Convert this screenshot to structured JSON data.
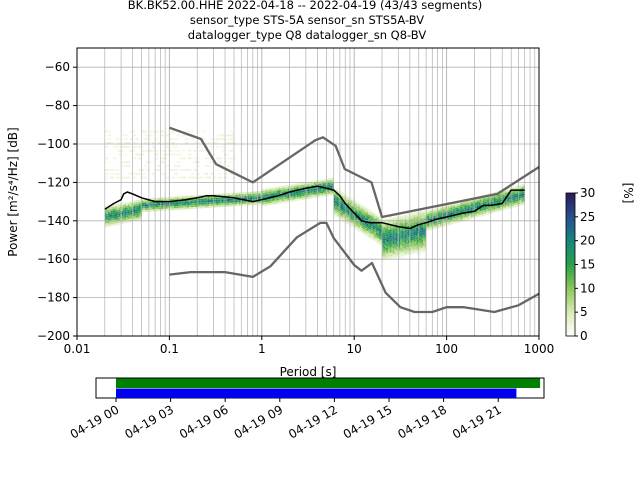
{
  "title": {
    "line1": "BK.BK52.00.HHE   2022-04-18 -- 2022-04-19  (43/43 segments)",
    "line2": "sensor_type STS-5A sensor_sn STS5A-BV",
    "line3": "datalogger_type Q8 datalogger_sn Q8-BV"
  },
  "chart_data": [
    {
      "type": "heatmap",
      "xlabel": "Period [s]",
      "ylabel": "Power [m²/s⁴/Hz] [dB]",
      "x_scale": "log",
      "xlim": [
        0.01,
        1000
      ],
      "ylim": [
        -200,
        -50
      ],
      "xticks": [
        0.01,
        0.1,
        1,
        10,
        100,
        1000
      ],
      "xtick_labels": [
        "0.01",
        "0.1",
        "1",
        "10",
        "100",
        "1000"
      ],
      "yticks": [
        -60,
        -80,
        -100,
        -120,
        -140,
        -160,
        -180,
        -200
      ],
      "grid": true,
      "colorbar": {
        "label": "[%]",
        "range": [
          0,
          30
        ],
        "ticks": [
          0,
          5,
          10,
          15,
          20,
          25,
          30
        ],
        "colors": [
          "#ffffff",
          "#d9edb8",
          "#8cc65a",
          "#2aa14a",
          "#19857e",
          "#274f8f",
          "#2b1a5a"
        ]
      },
      "series": [
        {
          "style": "mode",
          "color": "#000000",
          "points": [
            [
              0.02,
              -134
            ],
            [
              0.025,
              -131
            ],
            [
              0.03,
              -129
            ],
            [
              0.032,
              -126
            ],
            [
              0.035,
              -125
            ],
            [
              0.04,
              -126
            ],
            [
              0.05,
              -128
            ],
            [
              0.07,
              -130
            ],
            [
              0.1,
              -130
            ],
            [
              0.15,
              -129
            ],
            [
              0.2,
              -128
            ],
            [
              0.25,
              -127
            ],
            [
              0.3,
              -127
            ],
            [
              0.5,
              -128
            ],
            [
              0.8,
              -130
            ],
            [
              1,
              -129
            ],
            [
              1.5,
              -127
            ],
            [
              2,
              -125
            ],
            [
              3,
              -123
            ],
            [
              4,
              -122
            ],
            [
              5,
              -123
            ],
            [
              6,
              -124
            ],
            [
              7,
              -127
            ],
            [
              8,
              -131
            ],
            [
              10,
              -136
            ],
            [
              12,
              -140
            ],
            [
              15,
              -141
            ],
            [
              20,
              -141
            ],
            [
              30,
              -143
            ],
            [
              40,
              -144
            ],
            [
              50,
              -142
            ],
            [
              60,
              -141
            ],
            [
              80,
              -139
            ],
            [
              100,
              -138
            ],
            [
              150,
              -136
            ],
            [
              200,
              -135
            ],
            [
              250,
              -132
            ],
            [
              300,
              -132
            ],
            [
              400,
              -131
            ],
            [
              500,
              -124
            ],
            [
              700,
              -124
            ]
          ]
        },
        {
          "style": "nhnm",
          "color": "#666666",
          "points": [
            [
              0.1,
              -91.5
            ],
            [
              0.22,
              -97.4
            ],
            [
              0.32,
              -110.5
            ],
            [
              0.8,
              -120
            ],
            [
              3.8,
              -98
            ],
            [
              4.6,
              -96.5
            ],
            [
              6.3,
              -101
            ],
            [
              7.9,
              -113
            ],
            [
              15.4,
              -120
            ],
            [
              20,
              -138
            ],
            [
              354.8,
              -126
            ],
            [
              1000,
              -112
            ]
          ]
        },
        {
          "style": "nlnm",
          "color": "#666666",
          "points": [
            [
              0.1,
              -168
            ],
            [
              0.17,
              -166.7
            ],
            [
              0.4,
              -166.7
            ],
            [
              0.8,
              -169.2
            ],
            [
              1.24,
              -163.7
            ],
            [
              2.4,
              -148.6
            ],
            [
              4.3,
              -141.1
            ],
            [
              5,
              -141.1
            ],
            [
              6,
              -149
            ],
            [
              10,
              -163
            ],
            [
              12,
              -166
            ],
            [
              15.6,
              -162
            ],
            [
              21.9,
              -177.5
            ],
            [
              31.6,
              -185
            ],
            [
              45,
              -187.5
            ],
            [
              70,
              -187.5
            ],
            [
              100,
              -185
            ],
            [
              154.5,
              -185
            ],
            [
              328.5,
              -187.5
            ],
            [
              600,
              -184
            ],
            [
              1000,
              -178
            ]
          ]
        }
      ],
      "density_bands": [
        {
          "period": [
            0.02,
            0.05
          ],
          "db_center": [
            -138,
            -134
          ],
          "db_spread": 6
        },
        {
          "period": [
            0.05,
            1
          ],
          "db_center": [
            -132,
            -128
          ],
          "db_spread": 4
        },
        {
          "period": [
            1,
            6
          ],
          "db_center": [
            -128,
            -122
          ],
          "db_spread": 5
        },
        {
          "period": [
            6,
            20
          ],
          "db_center": [
            -130,
            -146
          ],
          "db_spread": 8
        },
        {
          "period": [
            20,
            60
          ],
          "db_center": [
            -150,
            -145
          ],
          "db_spread": 12
        },
        {
          "period": [
            60,
            700
          ],
          "db_center": [
            -140,
            -126
          ],
          "db_spread": 6
        }
      ],
      "faint_region": {
        "period": [
          0.02,
          0.5
        ],
        "db": [
          -118,
          -92
        ]
      }
    },
    {
      "type": "timeline",
      "xtick_labels": [
        "04-19 00",
        "04-19 03",
        "04-19 06",
        "04-19 09",
        "04-19 12",
        "04-19 15",
        "04-19 18",
        "04-19 21"
      ],
      "bars": [
        {
          "name": "data",
          "color": "#008000",
          "start_hour": 0,
          "end_hour": 23.3
        },
        {
          "name": "psd",
          "color": "#0000ee",
          "start_hour": 0,
          "end_hour": 22.0
        }
      ]
    }
  ]
}
